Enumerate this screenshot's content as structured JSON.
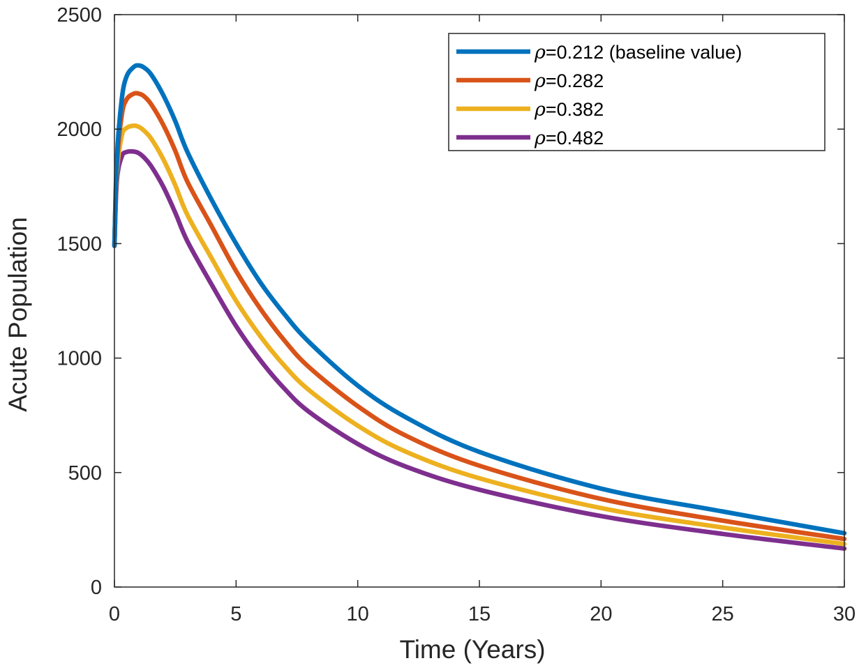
{
  "chart_data": {
    "type": "line",
    "title": "",
    "xlabel": "Time (Years)",
    "ylabel": "Acute Population",
    "xlim": [
      0,
      30
    ],
    "ylim": [
      0,
      2500
    ],
    "xticks": [
      0,
      5,
      10,
      15,
      20,
      25,
      30
    ],
    "xtick_labels": [
      "0",
      "5",
      "10",
      "15",
      "20",
      "25",
      "30"
    ],
    "yticks": [
      0,
      500,
      1000,
      1500,
      2000,
      2500
    ],
    "ytick_labels": [
      "0",
      "500",
      "1000",
      "1500",
      "2000",
      "2500"
    ],
    "grid": false,
    "legend_position": "top-right",
    "x": [
      0,
      0.1,
      0.3,
      0.5,
      0.8,
      1,
      1.2,
      1.5,
      2,
      2.5,
      3,
      4,
      5,
      6,
      7,
      8,
      10,
      12,
      15,
      20,
      25,
      30
    ],
    "series": [
      {
        "name": "baseline",
        "legend_symbol": "ρ",
        "legend_text": "=0.212 (baseline value)",
        "color": "#0072BD",
        "values": [
          1490,
          1870,
          2130,
          2230,
          2272,
          2278,
          2270,
          2240,
          2150,
          2035,
          1900,
          1690,
          1500,
          1330,
          1190,
          1070,
          880,
          740,
          590,
          430,
          330,
          235
        ]
      },
      {
        "name": "rho-0.282",
        "legend_symbol": "ρ",
        "legend_text": "=0.282",
        "color": "#D95319",
        "values": [
          1490,
          1840,
          2060,
          2130,
          2155,
          2155,
          2145,
          2110,
          2020,
          1905,
          1770,
          1575,
          1380,
          1215,
          1075,
          960,
          790,
          660,
          530,
          385,
          290,
          210
        ]
      },
      {
        "name": "rho-0.382",
        "legend_symbol": "ρ",
        "legend_text": "=0.382",
        "color": "#EDB120",
        "values": [
          1490,
          1810,
          1970,
          2005,
          2015,
          2010,
          1995,
          1960,
          1870,
          1755,
          1625,
          1435,
          1250,
          1095,
          965,
          860,
          705,
          590,
          475,
          345,
          260,
          188
        ]
      },
      {
        "name": "rho-0.482",
        "legend_symbol": "ρ",
        "legend_text": "=0.482",
        "color": "#7E2F8E",
        "values": [
          1490,
          1775,
          1880,
          1900,
          1902,
          1895,
          1878,
          1840,
          1750,
          1635,
          1510,
          1320,
          1140,
          990,
          865,
          765,
          625,
          525,
          425,
          310,
          232,
          168
        ]
      }
    ]
  }
}
